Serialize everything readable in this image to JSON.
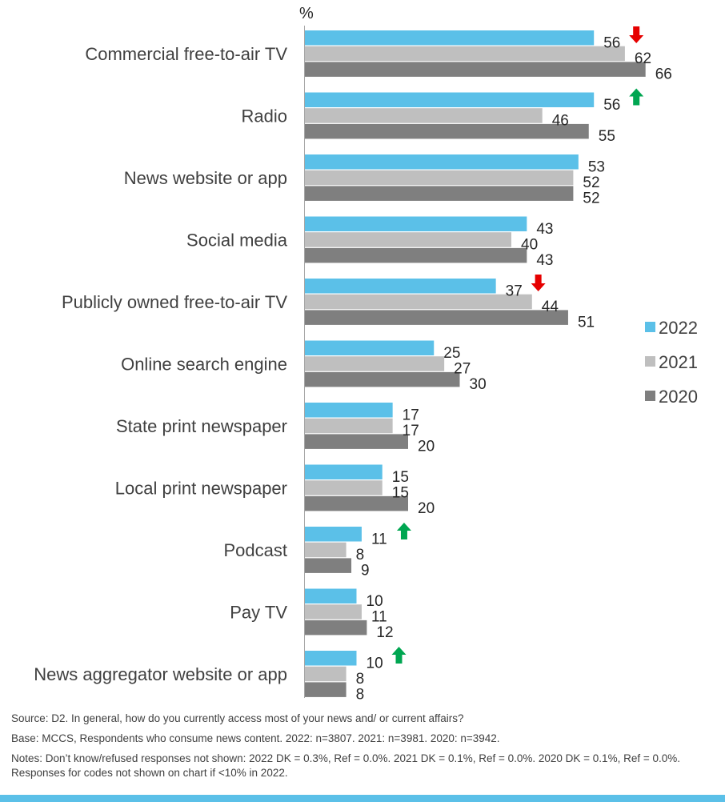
{
  "chart_data": {
    "type": "bar",
    "orientation": "horizontal",
    "unit_label": "%",
    "categories": [
      "Commercial free-to-air TV",
      "Radio",
      "News website or app",
      "Social media",
      "Publicly owned free-to-air TV",
      "Online search engine",
      "State print newspaper",
      "Local print newspaper",
      "Podcast",
      "Pay TV",
      "News aggregator website or app"
    ],
    "series": [
      {
        "name": "2022",
        "color": "#5bc0e8",
        "values": [
          56,
          56,
          53,
          43,
          37,
          25,
          17,
          15,
          11,
          10,
          10
        ]
      },
      {
        "name": "2021",
        "color": "#bfbfbf",
        "values": [
          62,
          46,
          52,
          40,
          44,
          27,
          17,
          15,
          8,
          11,
          8
        ]
      },
      {
        "name": "2020",
        "color": "#7f7f7f",
        "values": [
          66,
          55,
          52,
          43,
          51,
          30,
          20,
          20,
          9,
          12,
          8
        ]
      }
    ],
    "significance_2022": [
      "down",
      "up",
      "",
      "",
      "down",
      "",
      "",
      "",
      "up",
      "",
      "up"
    ],
    "arrow_colors": {
      "up": "#00a651",
      "down": "#e60000"
    },
    "xlim": [
      0,
      100
    ],
    "grid": false,
    "legend_position": "right"
  },
  "notes": {
    "source": "Source: D2. In general, how do you currently access most of your news and/ or current affairs?",
    "base": "Base: MCCS, Respondents who consume news content. 2022: n=3807. 2021: n=3981. 2020: n=3942.",
    "notes": "Notes: Don’t know/refused responses not shown: 2022 DK = 0.3%, Ref = 0.0%. 2021 DK = 0.1%, Ref = 0.0%. 2020 DK = 0.1%, Ref = 0.0%. Responses for codes not shown on chart if <10% in 2022."
  },
  "colors": {
    "accent_bar": "#5bc0e8"
  }
}
